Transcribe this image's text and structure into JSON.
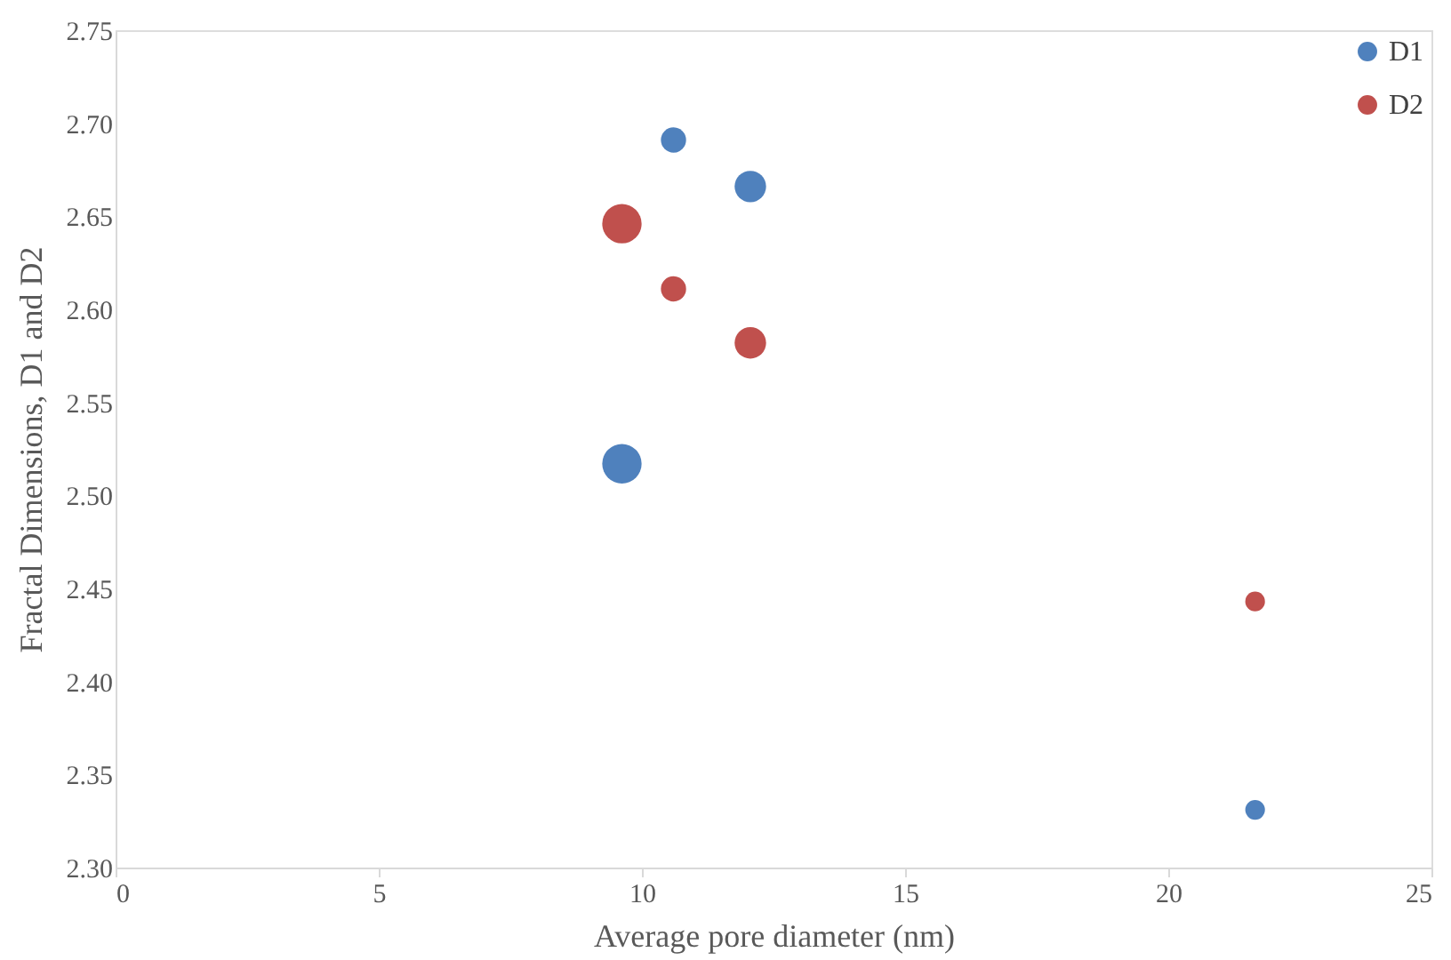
{
  "chart_data": {
    "type": "bubble",
    "xlabel": "Average pore diameter (nm)",
    "ylabel": "Fractal Dimensions, D1 and D2",
    "x": [
      9.62,
      10.6,
      12.06,
      21.65
    ],
    "series": [
      {
        "name": "D1",
        "color": "#4f81bd",
        "values": [
          2.517,
          2.691,
          2.666,
          2.331
        ],
        "sizes": [
          1,
          0.41,
          0.64,
          0.25
        ]
      },
      {
        "name": "D2",
        "color": "#c0504d",
        "values": [
          2.646,
          2.611,
          2.582,
          2.443
        ],
        "sizes": [
          1,
          0.41,
          0.64,
          0.25
        ]
      }
    ],
    "xlim": [
      0,
      25
    ],
    "xticks": [
      0,
      5,
      10,
      15,
      20,
      25
    ],
    "ylim": [
      2.3,
      2.75
    ],
    "yticks": [
      {
        "value": 2.3,
        "label": "2.30"
      },
      {
        "value": 2.35,
        "label": "2.35"
      },
      {
        "value": 2.4,
        "label": "2.40"
      },
      {
        "value": 2.45,
        "label": "2.45"
      },
      {
        "value": 2.5,
        "label": "2.50"
      },
      {
        "value": 2.55,
        "label": "2.55"
      },
      {
        "value": 2.6,
        "label": "2.60"
      },
      {
        "value": 2.65,
        "label": "2.65"
      },
      {
        "value": 2.7,
        "label": "2.70"
      },
      {
        "value": 2.75,
        "label": "2.75"
      }
    ],
    "grid": false,
    "legend": "top right"
  }
}
